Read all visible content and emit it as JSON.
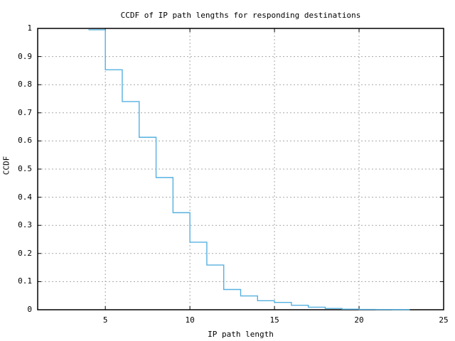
{
  "chart_data": {
    "type": "line",
    "style": "steps",
    "title": "CCDF of IP path lengths for responding destinations",
    "xlabel": "IP path length",
    "ylabel": "CCDF",
    "xlim": [
      1,
      25
    ],
    "ylim": [
      0,
      1
    ],
    "grid": true,
    "legend": "none",
    "x_ticks": [
      {
        "value": 5,
        "label": "5"
      },
      {
        "value": 10,
        "label": "10"
      },
      {
        "value": 15,
        "label": "15"
      },
      {
        "value": 20,
        "label": "20"
      },
      {
        "value": 25,
        "label": "25"
      }
    ],
    "y_ticks": [
      {
        "value": 0,
        "label": "0"
      },
      {
        "value": 0.1,
        "label": "0.1"
      },
      {
        "value": 0.2,
        "label": "0.2"
      },
      {
        "value": 0.3,
        "label": "0.3"
      },
      {
        "value": 0.4,
        "label": "0.4"
      },
      {
        "value": 0.5,
        "label": "0.5"
      },
      {
        "value": 0.6,
        "label": "0.6"
      },
      {
        "value": 0.7,
        "label": "0.7"
      },
      {
        "value": 0.8,
        "label": "0.8"
      },
      {
        "value": 0.9,
        "label": "0.9"
      },
      {
        "value": 1,
        "label": "1"
      }
    ],
    "steps": [
      {
        "x": 4,
        "ccdf": 0.995
      },
      {
        "x": 5,
        "ccdf": 0.853
      },
      {
        "x": 6,
        "ccdf": 0.74
      },
      {
        "x": 7,
        "ccdf": 0.613
      },
      {
        "x": 8,
        "ccdf": 0.47
      },
      {
        "x": 9,
        "ccdf": 0.345
      },
      {
        "x": 10,
        "ccdf": 0.24
      },
      {
        "x": 11,
        "ccdf": 0.159
      },
      {
        "x": 12,
        "ccdf": 0.072
      },
      {
        "x": 13,
        "ccdf": 0.049
      },
      {
        "x": 14,
        "ccdf": 0.032
      },
      {
        "x": 15,
        "ccdf": 0.026
      },
      {
        "x": 16,
        "ccdf": 0.016
      },
      {
        "x": 17,
        "ccdf": 0.009
      },
      {
        "x": 18,
        "ccdf": 0.0045
      },
      {
        "x": 19,
        "ccdf": 0.002
      },
      {
        "x": 20,
        "ccdf": 0.0012
      },
      {
        "x": 21,
        "ccdf": 0.0009
      },
      {
        "x": 22,
        "ccdf": 0.0006
      }
    ],
    "line_end_x": 23,
    "colors": {
      "line": "#56b0e0",
      "grid": "#a8a8a8",
      "border": "#000000",
      "text": "#000000",
      "background": "#ffffff"
    }
  }
}
